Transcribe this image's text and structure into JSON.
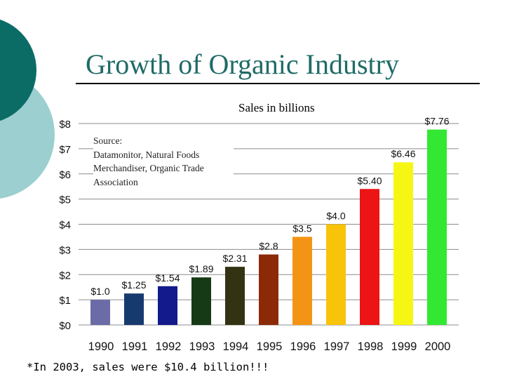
{
  "slide": {
    "title": "Growth of Organic Industry",
    "footnote": "*In 2003, sales were $10.4 billion!!!"
  },
  "chart_data": {
    "type": "bar",
    "title": "Sales in billions",
    "source_lines": [
      "Source:",
      "Datamonitor, Natural Foods",
      "Merchandiser, Organic Trade",
      "Association"
    ],
    "categories": [
      "1990",
      "1991",
      "1992",
      "1993",
      "1994",
      "1995",
      "1996",
      "1997",
      "1998",
      "1999",
      "2000"
    ],
    "values": [
      1.0,
      1.25,
      1.54,
      1.89,
      2.31,
      2.8,
      3.5,
      4.0,
      5.4,
      6.46,
      7.76
    ],
    "data_labels": [
      "$1.0",
      "$1.25",
      "$1.54",
      "$1.89",
      "$2.31",
      "$2.8",
      "$3.5",
      "$4.0",
      "$5.40",
      "$6.46",
      "$7.76"
    ],
    "bar_colors": [
      "#6b6ba8",
      "#173a6e",
      "#121a8c",
      "#163a16",
      "#333314",
      "#8c2a08",
      "#f49414",
      "#f7c40a",
      "#ec1414",
      "#f6f614",
      "#32e832"
    ],
    "y_ticks": [
      "$0",
      "$1",
      "$2",
      "$3",
      "$4",
      "$5",
      "$6",
      "$7",
      "$8"
    ],
    "ylim": [
      0,
      8
    ],
    "grid": true,
    "xlabel": "",
    "ylabel": ""
  }
}
